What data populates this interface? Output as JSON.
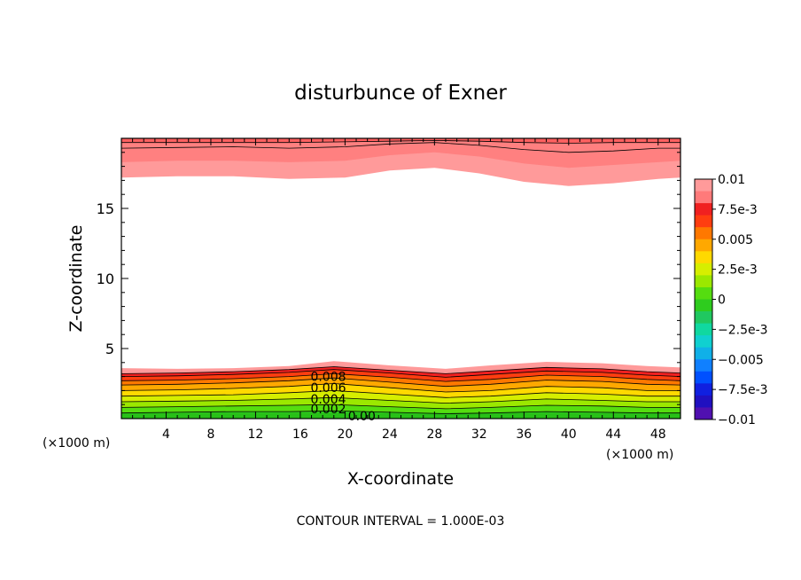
{
  "chart_data": {
    "type": "contour",
    "title": "disturbunce of Exner",
    "xlabel": "X-coordinate",
    "ylabel": "Z-coordinate",
    "x_unit_left": "(×1000 m)",
    "x_unit_right": "(×1000 m)",
    "footer": "CONTOUR INTERVAL = 1.000E-03",
    "xlim": [
      0,
      50
    ],
    "ylim": [
      0,
      20
    ],
    "xticks": [
      4,
      8,
      12,
      16,
      20,
      24,
      28,
      32,
      36,
      40,
      44,
      48
    ],
    "xtick_labels": [
      "4",
      "8",
      "12",
      "16",
      "20",
      "24",
      "28",
      "32",
      "36",
      "40",
      "44",
      "48"
    ],
    "yticks": [
      5,
      10,
      15
    ],
    "ytick_labels": [
      "5",
      "10",
      "15"
    ],
    "contour_interval": 0.001,
    "contour_labels": [
      {
        "text": "0.008",
        "x": 18.5,
        "y": 3.0
      },
      {
        "text": "0.006",
        "x": 18.5,
        "y": 2.2
      },
      {
        "text": "0.004",
        "x": 18.5,
        "y": 1.4
      },
      {
        "text": "0.002",
        "x": 18.5,
        "y": 0.7
      },
      {
        "text": "0.00",
        "x": 21.5,
        "y": 0.2
      }
    ],
    "bottom_layer": {
      "x": [
        0,
        5,
        10,
        15,
        19,
        24,
        29,
        33,
        38,
        43,
        47,
        50
      ],
      "band_tops": [
        [
          0.4,
          0.45,
          0.5,
          0.5,
          0.55,
          0.45,
          0.35,
          0.4,
          0.5,
          0.45,
          0.4,
          0.4
        ],
        [
          0.8,
          0.85,
          0.9,
          0.95,
          1.0,
          0.85,
          0.7,
          0.8,
          0.95,
          0.9,
          0.8,
          0.8
        ],
        [
          1.2,
          1.25,
          1.3,
          1.4,
          1.5,
          1.3,
          1.1,
          1.2,
          1.4,
          1.3,
          1.2,
          1.2
        ],
        [
          1.6,
          1.65,
          1.7,
          1.85,
          2.0,
          1.75,
          1.5,
          1.6,
          1.85,
          1.75,
          1.6,
          1.6
        ],
        [
          2.0,
          2.05,
          2.15,
          2.3,
          2.5,
          2.2,
          1.9,
          2.0,
          2.3,
          2.2,
          2.0,
          2.0
        ],
        [
          2.4,
          2.45,
          2.55,
          2.7,
          2.9,
          2.6,
          2.3,
          2.45,
          2.75,
          2.65,
          2.45,
          2.4
        ],
        [
          2.7,
          2.75,
          2.85,
          3.0,
          3.2,
          2.95,
          2.65,
          2.8,
          3.1,
          3.0,
          2.8,
          2.7
        ],
        [
          3.0,
          3.05,
          3.15,
          3.3,
          3.5,
          3.25,
          2.95,
          3.15,
          3.4,
          3.3,
          3.1,
          3.0
        ],
        [
          3.2,
          3.25,
          3.35,
          3.5,
          3.7,
          3.45,
          3.2,
          3.4,
          3.65,
          3.55,
          3.35,
          3.25
        ],
        [
          3.6,
          3.55,
          3.6,
          3.75,
          4.1,
          3.8,
          3.55,
          3.8,
          4.05,
          3.95,
          3.75,
          3.65
        ]
      ],
      "band_colors": [
        "#2ecc1e",
        "#55dd10",
        "#9be800",
        "#d6ee00",
        "#ffd900",
        "#ffa800",
        "#ff7800",
        "#ff3d10",
        "#f02020",
        "#ff9a9a"
      ]
    },
    "top_layer": {
      "x": [
        0,
        5,
        10,
        15,
        20,
        24,
        28,
        32,
        36,
        40,
        44,
        48,
        50
      ],
      "pink_bottom": [
        17.2,
        17.3,
        17.3,
        17.1,
        17.2,
        17.7,
        17.9,
        17.5,
        16.9,
        16.6,
        16.8,
        17.1,
        17.2
      ],
      "salmon_bottom": [
        18.3,
        18.4,
        18.4,
        18.3,
        18.4,
        18.8,
        19.0,
        18.7,
        18.2,
        17.9,
        18.1,
        18.3,
        18.4
      ],
      "line_a": [
        19.3,
        19.35,
        19.4,
        19.3,
        19.4,
        19.6,
        19.7,
        19.5,
        19.2,
        19.0,
        19.1,
        19.3,
        19.3
      ],
      "line_b": [
        19.7,
        19.7,
        19.7,
        19.7,
        19.75,
        19.8,
        19.85,
        19.8,
        19.7,
        19.65,
        19.7,
        19.7,
        19.7
      ],
      "colors": [
        "#ff9a9a",
        "#ff8080",
        "#ff6060"
      ]
    },
    "colorbar": {
      "labels": [
        "0.01",
        "7.5e-3",
        "0.005",
        "2.5e-3",
        "0",
        "−2.5e-3",
        "−0.005",
        "−7.5e-3",
        "−0.01"
      ],
      "colors_top_to_bottom": [
        "#ff9a9a",
        "#ff7a7a",
        "#f02020",
        "#ff3d10",
        "#ff7800",
        "#ffa800",
        "#ffd900",
        "#d6ee00",
        "#9be800",
        "#55dd10",
        "#2ecc1e",
        "#20c860",
        "#10d8a0",
        "#10d0d0",
        "#10b0e8",
        "#1080ff",
        "#0050ff",
        "#1020e0",
        "#2010c0",
        "#5010b0"
      ]
    }
  }
}
